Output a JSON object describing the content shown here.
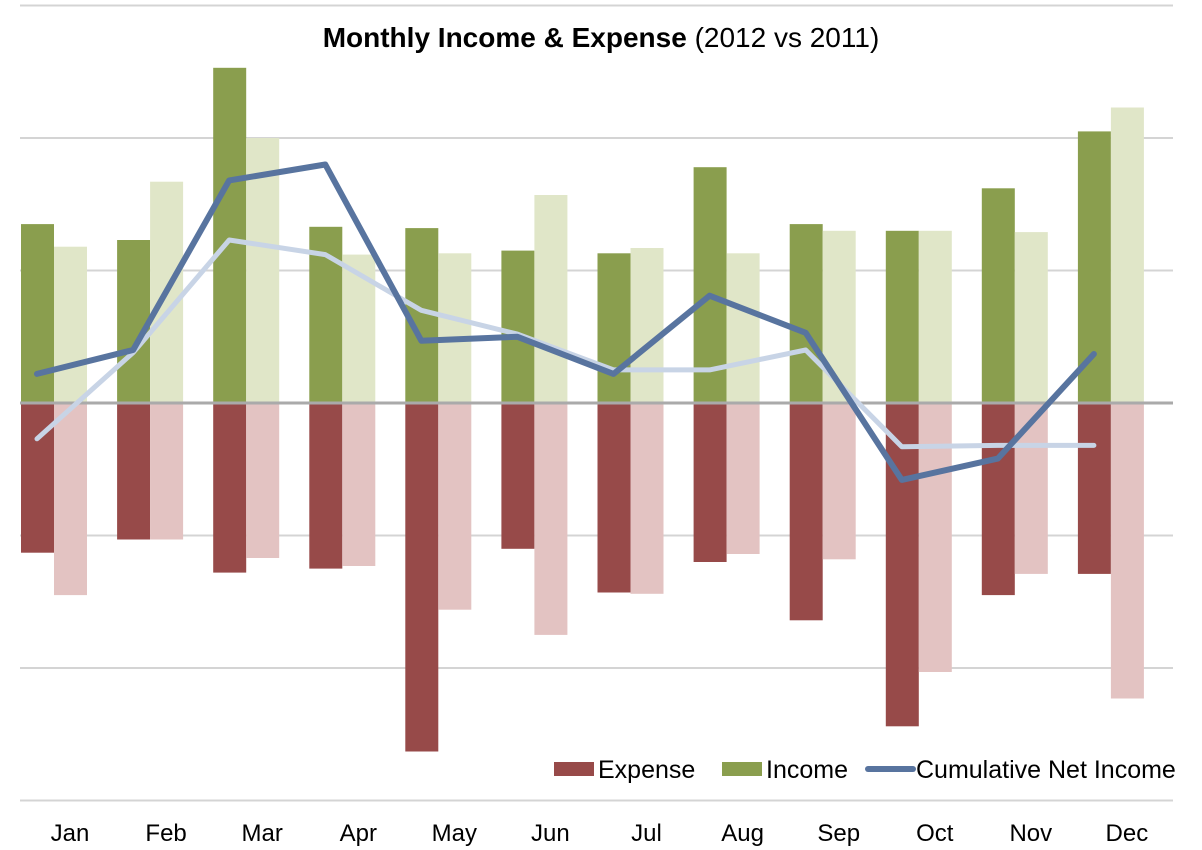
{
  "chart_data": {
    "type": "bar",
    "title": "Monthly Income & Expense",
    "subtitle": "(2012 vs 2011)",
    "categories": [
      "Jan",
      "Feb",
      "Mar",
      "Apr",
      "May",
      "Jun",
      "Jul",
      "Aug",
      "Sep",
      "Oct",
      "Nov",
      "Dec"
    ],
    "ylim": [
      -3,
      3
    ],
    "grid": true,
    "legend_position": "bottom-right",
    "series": [
      {
        "name": "Income",
        "kind": "bar",
        "year": "2012",
        "color": "#8a9e4e",
        "values": [
          1.35,
          1.23,
          2.53,
          1.33,
          1.32,
          1.15,
          1.13,
          1.78,
          1.35,
          1.3,
          1.62,
          2.05
        ]
      },
      {
        "name": "",
        "kind": "bar",
        "year": "2011",
        "color": "#e0e6c8",
        "values": [
          1.18,
          1.67,
          2.0,
          1.12,
          1.13,
          1.57,
          1.17,
          1.13,
          1.3,
          1.3,
          1.29,
          2.23
        ]
      },
      {
        "name": "Expense",
        "kind": "bar",
        "year": "2012",
        "color": "#974a49",
        "values": [
          -1.13,
          -1.03,
          -1.28,
          -1.25,
          -2.63,
          -1.1,
          -1.43,
          -1.2,
          -1.64,
          -2.44,
          -1.45,
          -1.29
        ]
      },
      {
        "name": "",
        "kind": "bar",
        "year": "2011",
        "color": "#e3c3c2",
        "values": [
          -1.45,
          -1.03,
          -1.17,
          -1.23,
          -1.56,
          -1.75,
          -1.44,
          -1.14,
          -1.18,
          -2.03,
          -1.29,
          -2.23
        ]
      },
      {
        "name": "Cumulative Net Income",
        "kind": "line",
        "year": "2012",
        "color": "#58749f",
        "values": [
          0.22,
          0.4,
          1.68,
          1.8,
          0.47,
          0.5,
          0.22,
          0.81,
          0.53,
          -0.58,
          -0.42,
          0.37
        ]
      },
      {
        "name": "",
        "kind": "line",
        "year": "2011",
        "color": "#c8d4e6",
        "values": [
          -0.27,
          0.38,
          1.23,
          1.12,
          0.7,
          0.52,
          0.25,
          0.25,
          0.4,
          -0.33,
          -0.32,
          -0.32
        ]
      }
    ]
  },
  "colors": {
    "axis": "#aaaaaa",
    "grid": "#d4d4d4"
  }
}
